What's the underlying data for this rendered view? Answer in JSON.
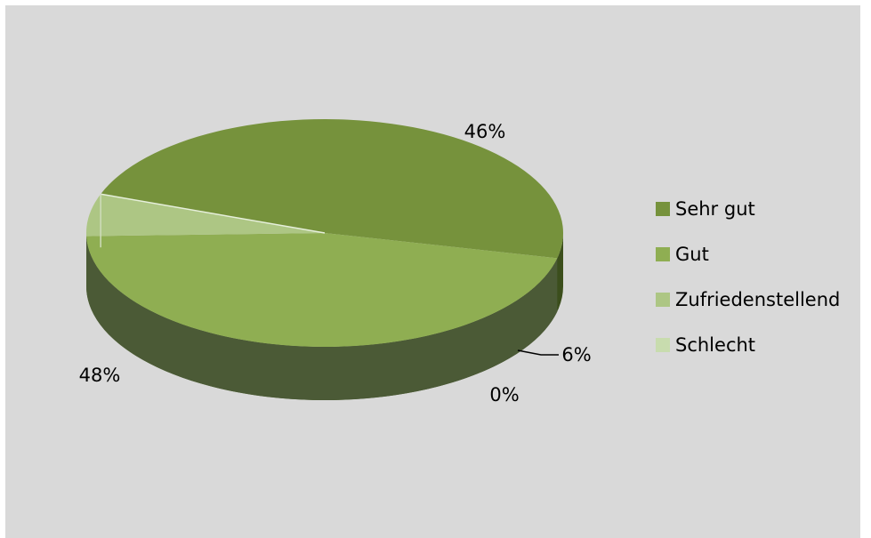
{
  "chart_data": {
    "type": "pie",
    "title": "",
    "categories": [
      "Sehr gut",
      "Gut",
      "Zufriedenstellend",
      "Schlecht"
    ],
    "values": [
      48,
      46,
      6,
      0
    ],
    "data_labels": [
      "48%",
      "46%",
      "6%",
      "0%"
    ],
    "colors": [
      "#76923c",
      "#8fae52",
      "#adc684",
      "#c8dcae"
    ],
    "legend_position": "right",
    "three_d": true
  },
  "legend": {
    "items": [
      {
        "label": "Sehr gut",
        "color": "#76923c"
      },
      {
        "label": "Gut",
        "color": "#8fae52"
      },
      {
        "label": "Zufriedenstellend",
        "color": "#adc684"
      },
      {
        "label": "Schlecht",
        "color": "#c8dcae"
      }
    ]
  },
  "background": "#d9d9d9"
}
